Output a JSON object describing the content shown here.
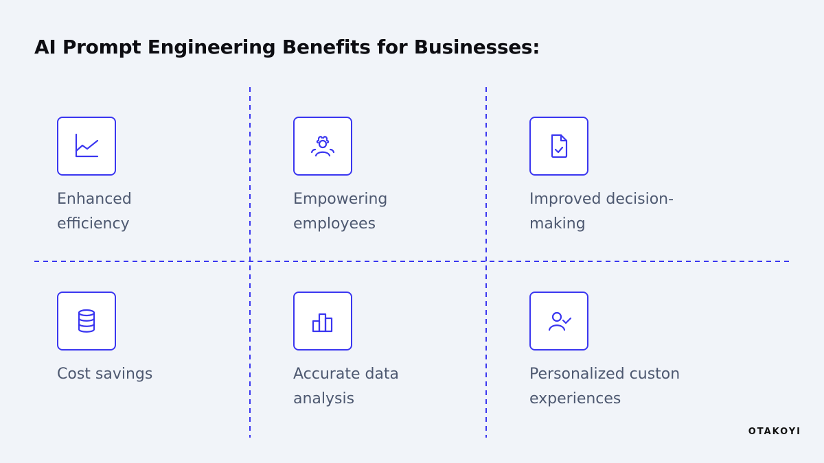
{
  "title": "AI Prompt Engineering Benefits for Businesses:",
  "accent_color": "#3a36f0",
  "items": [
    {
      "icon": "line-chart-icon",
      "line1": "Enhanced",
      "line2": "efficiency"
    },
    {
      "icon": "users-group-icon",
      "line1": "Empowering",
      "line2": "employees"
    },
    {
      "icon": "document-check-icon",
      "line1": "Improved decision-",
      "line2": "making"
    },
    {
      "icon": "database-icon",
      "line1": "Cost savings",
      "line2": ""
    },
    {
      "icon": "bar-chart-icon",
      "line1": "Accurate data",
      "line2": "analysis"
    },
    {
      "icon": "user-check-icon",
      "line1": "Personalized custon",
      "line2": "experiences"
    }
  ],
  "brand": "OTAKOYI"
}
